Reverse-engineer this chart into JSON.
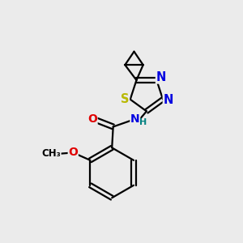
{
  "background_color": "#ebebeb",
  "bond_color": "#000000",
  "bond_width": 1.6,
  "atom_colors": {
    "S": "#b8b800",
    "N": "#0000e0",
    "O": "#e00000",
    "H": "#008080",
    "C": "#000000"
  },
  "font_size": 9.5,
  "font_size_small": 8.5
}
